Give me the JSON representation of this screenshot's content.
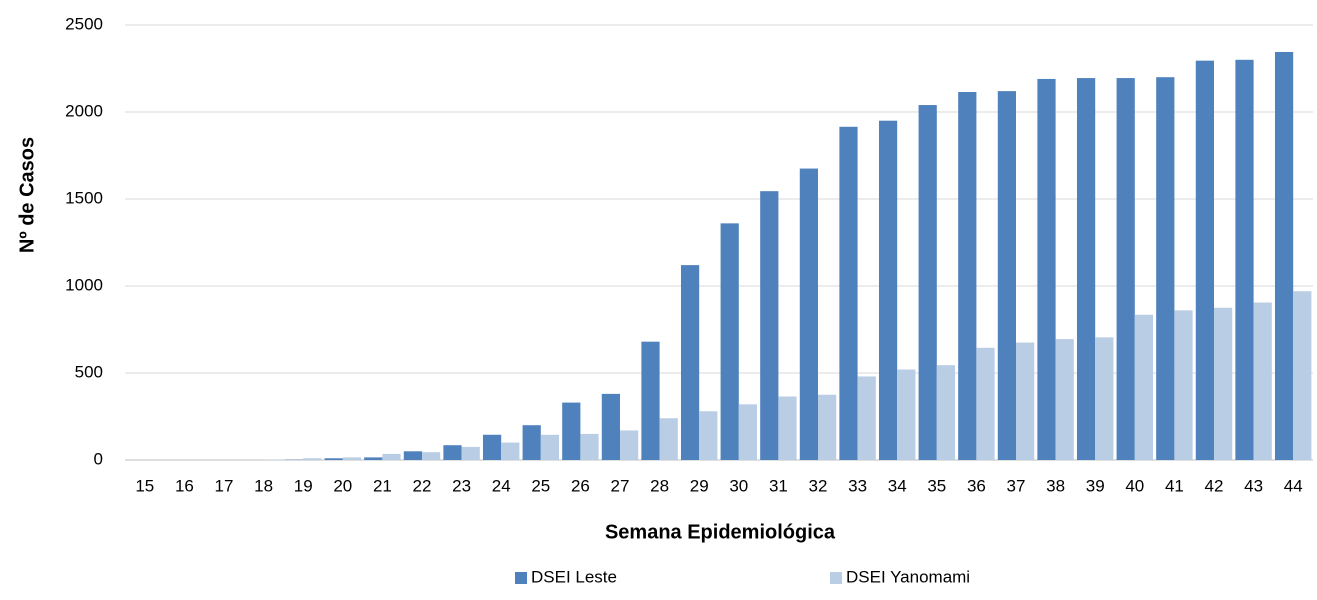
{
  "chart_data": {
    "type": "bar",
    "x_label": "Semana Epidemiológica",
    "y_label": "Nº de Casos",
    "categories": [
      "15",
      "16",
      "17",
      "18",
      "19",
      "20",
      "21",
      "22",
      "23",
      "24",
      "25",
      "26",
      "27",
      "28",
      "29",
      "30",
      "31",
      "32",
      "33",
      "34",
      "35",
      "36",
      "37",
      "38",
      "39",
      "40",
      "41",
      "42",
      "43",
      "44"
    ],
    "series": [
      {
        "name": "DSEI Leste",
        "color": "#4f81bd",
        "values": [
          0,
          0,
          0,
          0,
          2,
          10,
          15,
          50,
          85,
          145,
          200,
          330,
          380,
          680,
          1120,
          1360,
          1545,
          1675,
          1915,
          1950,
          2040,
          2115,
          2120,
          2190,
          2195,
          2195,
          2200,
          2295,
          2300,
          2345
        ]
      },
      {
        "name": "DSEI Yanomami",
        "color": "#b9cde5",
        "values": [
          0,
          0,
          0,
          2,
          10,
          15,
          35,
          45,
          75,
          100,
          145,
          150,
          170,
          240,
          280,
          320,
          365,
          375,
          480,
          520,
          545,
          645,
          675,
          695,
          705,
          835,
          860,
          875,
          905,
          970
        ]
      }
    ],
    "ylim": [
      0,
      2500
    ],
    "yticks": [
      0,
      500,
      1000,
      1500,
      2000,
      2500
    ],
    "grid": true,
    "legend": "bottom"
  }
}
